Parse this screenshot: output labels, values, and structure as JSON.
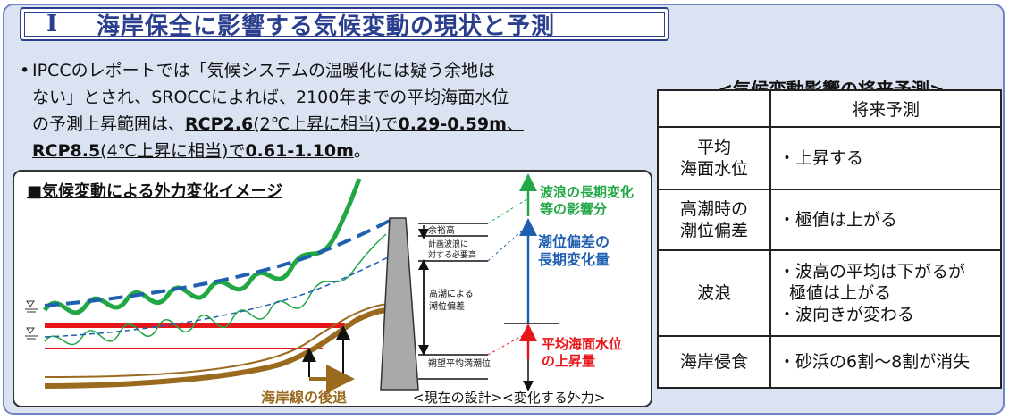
{
  "title": {
    "num": "I",
    "text": "海岸保全に影響する気候変動の現状と予測"
  },
  "bullet": {
    "mark": "•",
    "l1": "IPCCのレポートでは「気候システムの温暖化には疑う余地は",
    "l2": "ない」とされ、SROCCによれば、2100年までの平均海面水位",
    "l3a": "の予測上昇範囲は、",
    "l3b": "RCP2.6",
    "l3c": "(2℃上昇に相当)",
    "l3d": "で",
    "l3e": "0.29-0.59m",
    "l3f": "、",
    "l4a": "RCP8.5",
    "l4b": "(4℃上昇に相当)",
    "l4c": "で",
    "l4d": "0.61-1.10m",
    "l4e": "。"
  },
  "diagram": {
    "title": "■気候変動による外力変化イメージ",
    "label_margin": "余裕高",
    "label_wave1": "計画波浪に",
    "label_wave2": "対する必要高",
    "label_tide1": "高潮による",
    "label_tide2": "潮位偏差",
    "label_hwl": "朔望平均満潮位",
    "green1": "波浪の長期変化",
    "green2": "等の影響分",
    "blue1": "潮位偏差の",
    "blue2": "長期変化量",
    "red1": "平均海面水位",
    "red2": "の上昇量",
    "retreat": "海岸線の後退",
    "bottom": "<現在の設計><変化する外力>",
    "colors": {
      "green": "#22a745",
      "blue": "#1f5fb0",
      "red": "#e8161b",
      "brown": "#9a6a1f",
      "wall": "#a9a9a9"
    }
  },
  "future": {
    "title": "<気候変動影響の将来予測>",
    "header": "将来予測",
    "rows": [
      {
        "h1": "平均",
        "h2": "海面水位",
        "c1": "・上昇する"
      },
      {
        "h1": "高潮時の",
        "h2": "潮位偏差",
        "c1": "・極値は上がる"
      },
      {
        "h1": "波浪",
        "c1": "・波高の平均は下がるが",
        "c2": "  極値は上がる",
        "c3": "・波向きが変わる"
      },
      {
        "h1": "海岸侵食",
        "c1": "・砂浜の6割～8割が消失"
      }
    ]
  }
}
